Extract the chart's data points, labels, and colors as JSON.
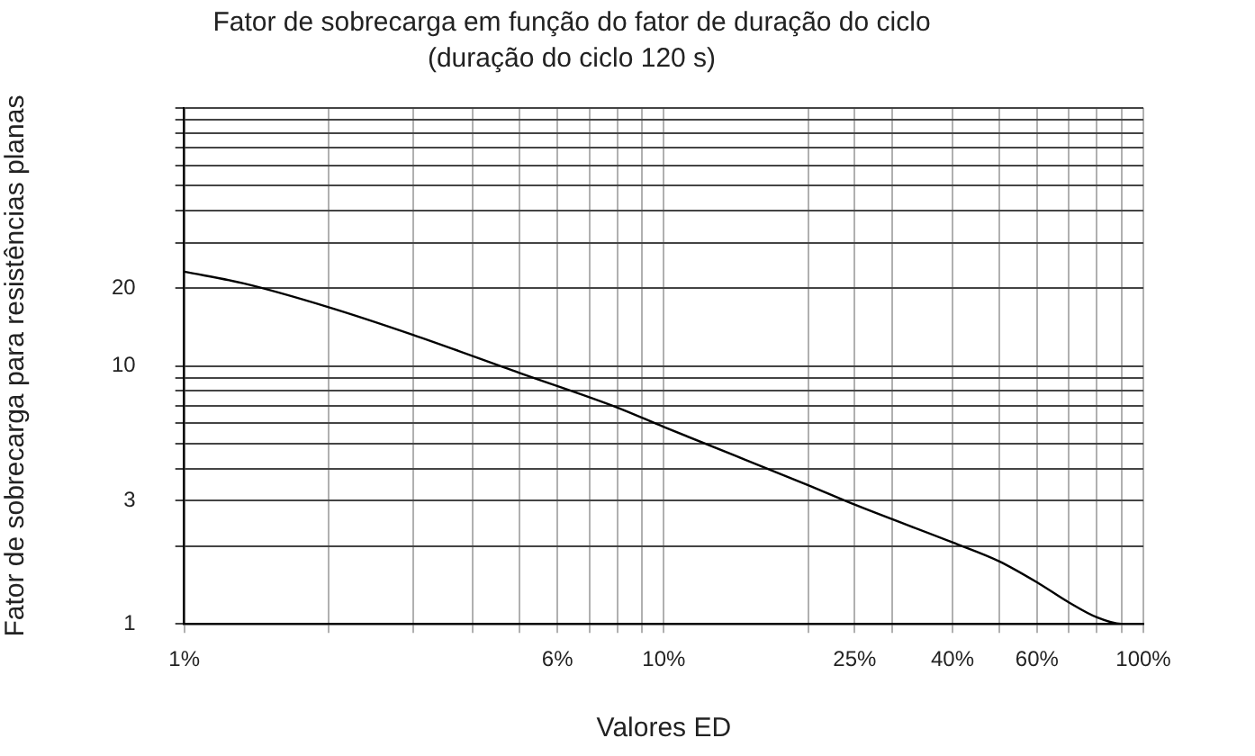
{
  "chart_data": {
    "type": "line",
    "title": "Fator de sobrecarga em função do fator de duração do ciclo",
    "subtitle": "(duração do ciclo 120 s)",
    "xlabel": "Valores ED",
    "ylabel": "Fator de sobrecarga para resistências planas",
    "log": "xy",
    "grid": true,
    "marker": "none",
    "line_style": "solid",
    "x": [
      1,
      1.33,
      2,
      3,
      5,
      8,
      10,
      20,
      25,
      40,
      50,
      60,
      70,
      80,
      90,
      100
    ],
    "series": [
      {
        "color": "#000000",
        "values": [
          23.2,
          20.9,
          16.9,
          13.2,
          9.4,
          6.9,
          5.8,
          3.45,
          2.9,
          2.07,
          1.75,
          1.45,
          1.21,
          1.06,
          1.0,
          1.0
        ]
      }
    ],
    "xlim": [
      1,
      100
    ],
    "xticks": [
      {
        "value": 1,
        "label": "1%"
      },
      {
        "value": 2,
        "label": null
      },
      {
        "value": 3,
        "label": null
      },
      {
        "value": 4,
        "label": null
      },
      {
        "value": 5,
        "label": null
      },
      {
        "value": 6,
        "label": "6%"
      },
      {
        "value": 7,
        "label": null
      },
      {
        "value": 8,
        "label": null
      },
      {
        "value": 9,
        "label": null
      },
      {
        "value": 10,
        "label": "10%"
      },
      {
        "value": 20,
        "label": null
      },
      {
        "value": 25,
        "label": "25%"
      },
      {
        "value": 30,
        "label": null
      },
      {
        "value": 40,
        "label": "40%"
      },
      {
        "value": 50,
        "label": null
      },
      {
        "value": 60,
        "label": "60%"
      },
      {
        "value": 70,
        "label": null
      },
      {
        "value": 80,
        "label": null
      },
      {
        "value": 90,
        "label": null
      },
      {
        "value": 100,
        "label": "100%"
      }
    ],
    "ylim": [
      1,
      100
    ],
    "yticks": [
      1,
      {
        "value": 2,
        "label": null
      },
      3,
      {
        "value": 4,
        "label": null
      },
      {
        "value": 5,
        "label": null
      },
      {
        "value": 6,
        "label": null
      },
      {
        "value": 7,
        "label": null
      },
      {
        "value": 8,
        "label": null
      },
      {
        "value": 9,
        "label": null
      },
      10,
      20,
      {
        "value": 30,
        "label": null
      },
      {
        "value": 40,
        "label": null
      },
      {
        "value": 50,
        "label": null
      },
      {
        "value": 60,
        "label": null
      },
      {
        "value": 70,
        "label": null
      },
      {
        "value": 80,
        "label": null
      },
      {
        "value": 90,
        "label": null
      },
      {
        "value": 100,
        "label": null
      }
    ]
  }
}
